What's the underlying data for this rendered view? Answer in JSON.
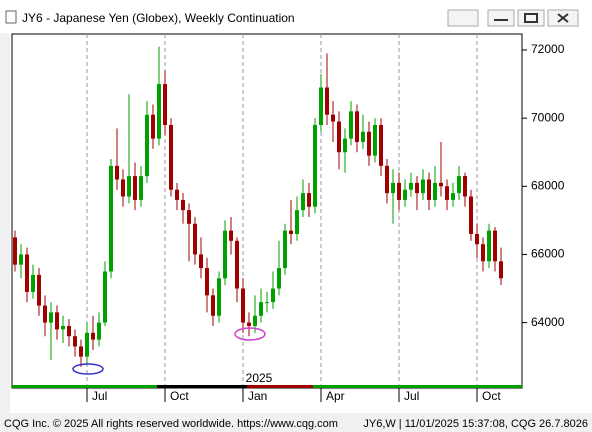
{
  "chart_data": {
    "type": "candlestick",
    "title": "JY6 - Japanese Yen (Globex), Weekly Continuation",
    "categories": [
      null,
      null,
      null,
      null,
      null,
      null,
      null,
      null,
      null,
      null,
      null,
      null,
      "Jul",
      null,
      null,
      null,
      null,
      null,
      null,
      null,
      null,
      null,
      null,
      null,
      null,
      "Oct",
      null,
      null,
      null,
      null,
      null,
      null,
      null,
      null,
      null,
      null,
      null,
      null,
      "Jan",
      null,
      null,
      null,
      null,
      null,
      null,
      null,
      null,
      null,
      null,
      null,
      null,
      "Apr",
      null,
      null,
      null,
      null,
      null,
      null,
      null,
      null,
      null,
      null,
      null,
      null,
      "Jul",
      null,
      null,
      null,
      null,
      null,
      null,
      null,
      null,
      null,
      null,
      null,
      null,
      "Oct",
      null,
      null,
      null,
      null
    ],
    "year_label": "2025",
    "open": [
      66500,
      65700,
      66000,
      64900,
      65400,
      64500,
      64000,
      64300,
      63800,
      63900,
      63600,
      63300,
      63000,
      63700,
      63500,
      64000,
      65500,
      68600,
      68200,
      67700,
      68300,
      67600,
      68300,
      70100,
      69400,
      71000,
      69800,
      67900,
      67600,
      67300,
      66900,
      66000,
      65600,
      64800,
      64200,
      65300,
      66700,
      66400,
      65000,
      64000,
      63900,
      64200,
      64600,
      64600,
      65000,
      65600,
      66700,
      66600,
      67300,
      67800,
      67400,
      69800,
      70900,
      70100,
      69900,
      69000,
      69400,
      70200,
      69300,
      69600,
      68900,
      69800,
      68600,
      67800,
      68100,
      67600,
      67900,
      68100,
      67800,
      68200,
      67600,
      68100,
      68000,
      67600,
      67800,
      68300,
      67700,
      66600,
      66300,
      65800,
      66700,
      65800
    ],
    "high": [
      66700,
      66300,
      66200,
      65700,
      65600,
      64800,
      64600,
      64500,
      64200,
      64100,
      63800,
      63500,
      64000,
      64200,
      64300,
      65800,
      68800,
      69700,
      68500,
      70700,
      68700,
      68600,
      70500,
      70400,
      72100,
      71400,
      70000,
      68100,
      67800,
      67500,
      67100,
      66500,
      65900,
      65000,
      65500,
      67000,
      67100,
      66500,
      65300,
      64300,
      64800,
      65000,
      64900,
      65500,
      66400,
      66900,
      67600,
      67700,
      68200,
      68100,
      70000,
      71300,
      71900,
      70500,
      70200,
      69700,
      70500,
      70400,
      70100,
      69900,
      70000,
      70000,
      68800,
      68500,
      68400,
      68200,
      68400,
      68300,
      68500,
      68400,
      68600,
      69300,
      68200,
      68100,
      68600,
      68400,
      67900,
      66900,
      66500,
      66900,
      66800,
      66200
    ],
    "low": [
      65500,
      65300,
      64600,
      64700,
      64200,
      63600,
      62900,
      63500,
      63400,
      63300,
      63000,
      62700,
      62800,
      63200,
      63300,
      63900,
      65300,
      67900,
      67400,
      67500,
      67300,
      67400,
      68100,
      69100,
      69200,
      69500,
      67700,
      67300,
      66900,
      65800,
      65700,
      65300,
      64300,
      63900,
      64000,
      65100,
      66000,
      64600,
      63700,
      63600,
      63700,
      64000,
      64300,
      64400,
      64800,
      65400,
      66300,
      66400,
      67100,
      67100,
      67200,
      69600,
      69800,
      69300,
      68500,
      68400,
      69200,
      69000,
      69100,
      68600,
      68700,
      68300,
      67500,
      66900,
      67300,
      67400,
      67700,
      67300,
      67600,
      67300,
      67400,
      67700,
      67300,
      67400,
      67600,
      67400,
      66400,
      65900,
      65500,
      65600,
      65500,
      65100
    ],
    "close": [
      65700,
      66000,
      64900,
      65400,
      64500,
      64000,
      64300,
      63800,
      63900,
      63600,
      63300,
      63000,
      63700,
      63500,
      64000,
      65500,
      68600,
      68200,
      67700,
      68300,
      67600,
      68300,
      70100,
      69400,
      71000,
      69800,
      67900,
      67600,
      67300,
      66900,
      66000,
      65600,
      64800,
      64200,
      65300,
      66700,
      66400,
      65000,
      64000,
      63900,
      64200,
      64600,
      64600,
      65000,
      65600,
      66700,
      66600,
      67300,
      67800,
      67400,
      69800,
      70900,
      70100,
      69900,
      69000,
      69400,
      70200,
      69300,
      69600,
      68900,
      69800,
      68600,
      67800,
      68100,
      67600,
      67900,
      68100,
      67800,
      68200,
      67600,
      68100,
      68000,
      67600,
      67800,
      68300,
      67700,
      66600,
      66300,
      65800,
      66700,
      65800,
      65300
    ],
    "up_color": "#00a000",
    "down_color": "#a00000",
    "ylim": [
      62080,
      72470
    ],
    "yticks": [
      64000,
      66000,
      68000,
      70000,
      72000
    ],
    "grid": true
  },
  "footer": {
    "copyright": "CQG Inc. © 2025 All rights reserved worldwide. https://www.cqg.com",
    "status": "JY6,W | 11/01/2025 15:37:08, CQG 26.7.8026"
  }
}
